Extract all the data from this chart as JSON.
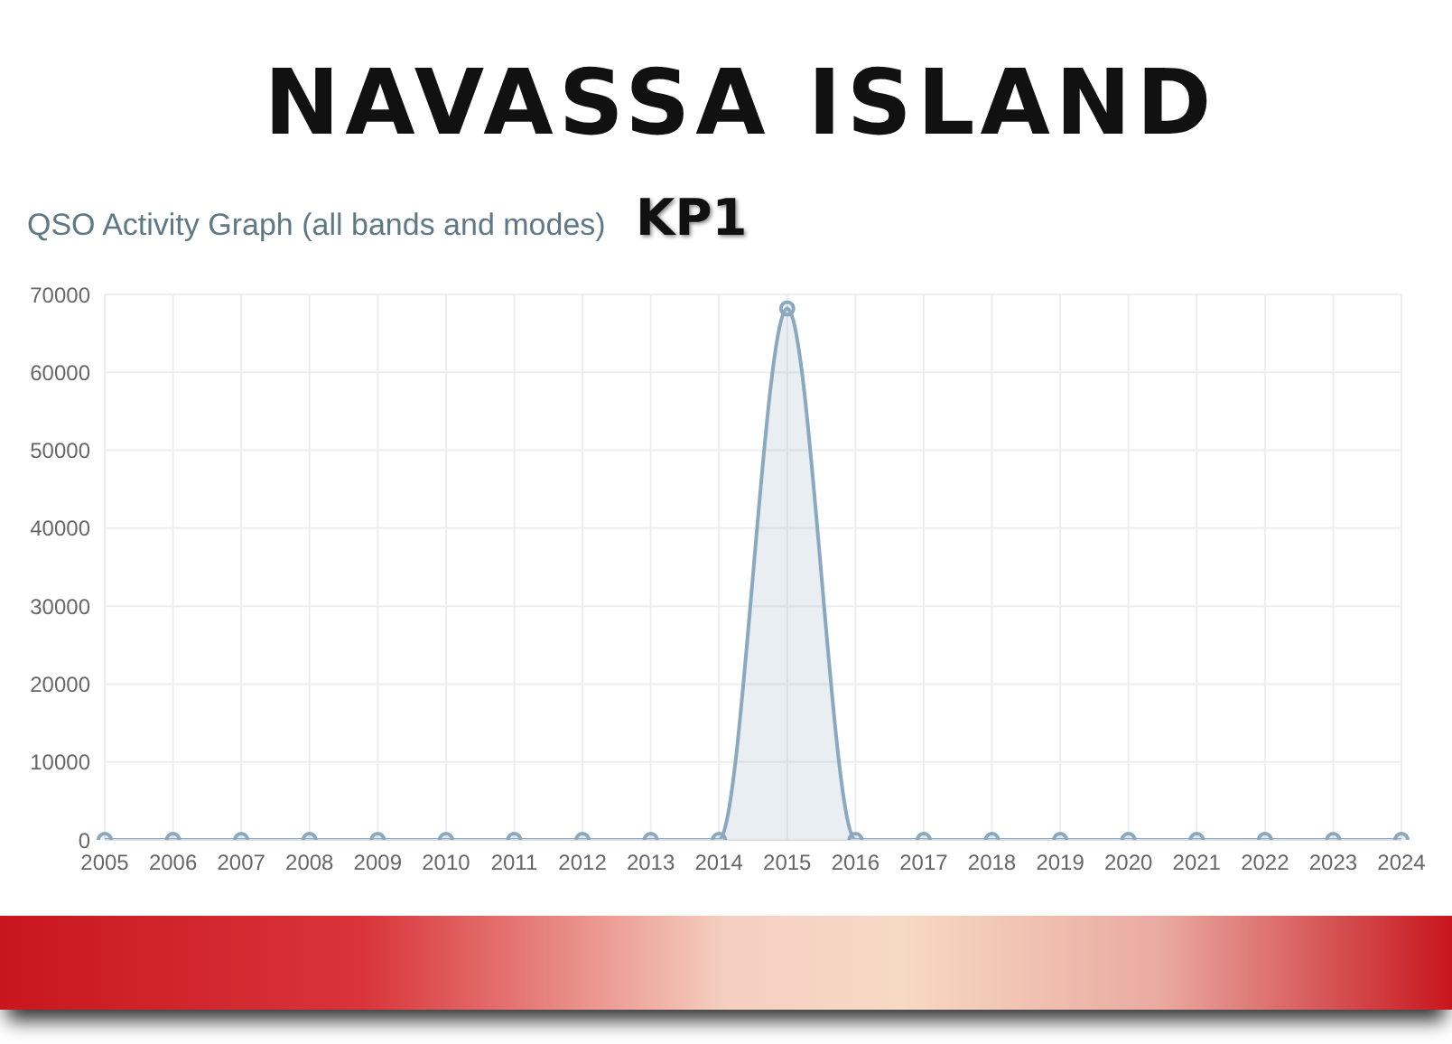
{
  "chart_data": {
    "type": "area",
    "title": "NAVASSA ISLAND",
    "subtitle": "QSO Activity Graph (all bands and modes)",
    "annotations": [
      "KP1"
    ],
    "categories": [
      "2005",
      "2006",
      "2007",
      "2008",
      "2009",
      "2010",
      "2011",
      "2012",
      "2013",
      "2014",
      "2015",
      "2016",
      "2017",
      "2018",
      "2019",
      "2020",
      "2021",
      "2022",
      "2023",
      "2024"
    ],
    "series": [
      {
        "color": "#8aa9bf",
        "values": [
          0,
          0,
          0,
          0,
          0,
          0,
          0,
          0,
          0,
          0,
          68200,
          0,
          0,
          0,
          0,
          0,
          0,
          0,
          0,
          0
        ]
      }
    ],
    "ylim": [
      0,
      70000
    ],
    "yticks": [
      0,
      10000,
      20000,
      30000,
      40000,
      50000,
      60000,
      70000
    ],
    "grid": true,
    "marker": "circle",
    "legend": false
  }
}
